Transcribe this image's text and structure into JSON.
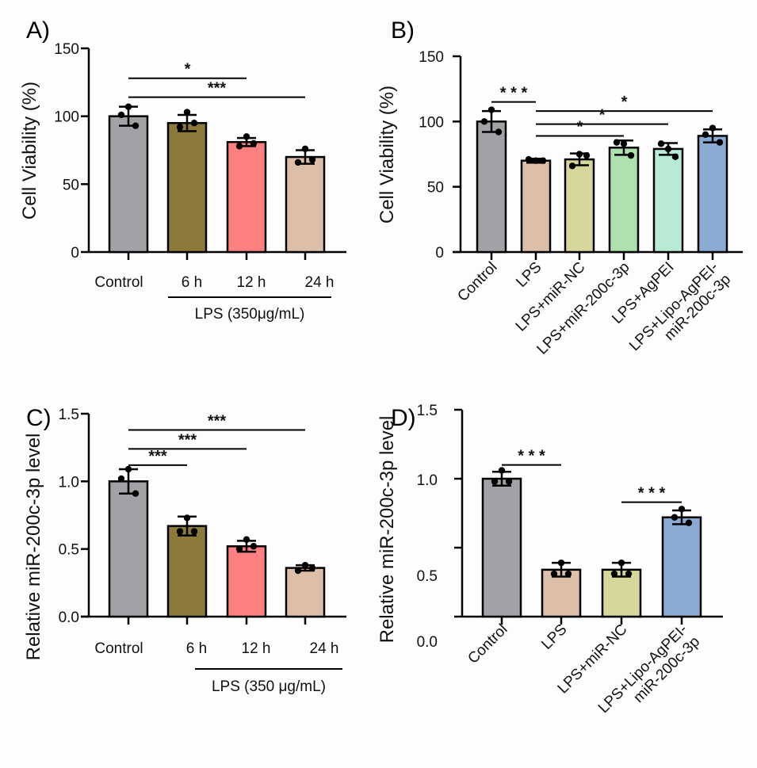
{
  "chart_data": [
    {
      "panel": "A)",
      "type": "bar",
      "ylabel": "Cell Viability (%)",
      "ylim": [
        0,
        150
      ],
      "yticks": [
        0,
        50,
        100,
        150
      ],
      "categories": [
        "Control",
        "6 h",
        "12 h",
        "24 h"
      ],
      "group_label": "LPS (350μg/mL)",
      "group_members": [
        "6 h",
        "12 h",
        "24 h"
      ],
      "values": [
        100,
        95,
        81,
        70
      ],
      "errors": [
        7,
        6,
        3,
        5
      ],
      "points": [
        [
          107,
          101,
          93
        ],
        [
          103,
          92,
          95
        ],
        [
          85,
          78,
          80
        ],
        [
          76,
          66,
          68
        ]
      ],
      "colors": [
        "#a2a2a6",
        "#8b7a3a",
        "#fe8080",
        "#dbbfa8"
      ],
      "significance": [
        {
          "from": 0,
          "to": 2,
          "label": "*",
          "level": 128
        },
        {
          "from": 0,
          "to": 3,
          "label": "***",
          "level": 114
        }
      ]
    },
    {
      "panel": "B)",
      "type": "bar",
      "ylabel": "Cell Viability (%)",
      "ylim": [
        0,
        150
      ],
      "yticks": [
        0,
        50,
        100,
        150
      ],
      "categories": [
        "Control",
        "LPS",
        "LPS+miR-NC",
        "LPS+miR-200c-3p",
        "LPS+AgPEI",
        "LPS+Lipo-AgPEI-miR-200c-3p"
      ],
      "category_lines": [
        [
          "Control"
        ],
        [
          "LPS"
        ],
        [
          "LPS+miR-NC"
        ],
        [
          "LPS+miR-200c-3p"
        ],
        [
          "LPS+AgPEI"
        ],
        [
          "LPS+Lipo-AgPEI-",
          "miR-200c-3p"
        ]
      ],
      "values": [
        100,
        70,
        71,
        80,
        79,
        89
      ],
      "errors": [
        8,
        1.5,
        4.5,
        5.5,
        4.5,
        5
      ],
      "points": [
        [
          109,
          100,
          92
        ],
        [
          70,
          71,
          70
        ],
        [
          75,
          66,
          74
        ],
        [
          83,
          84,
          74
        ],
        [
          79,
          83,
          73
        ],
        [
          95,
          90,
          84
        ]
      ],
      "colors": [
        "#a2a2a6",
        "#dbbfa8",
        "#d8d79b",
        "#aee0ad",
        "#b7ebd4",
        "#8cabd3"
      ],
      "significance": [
        {
          "from": 0,
          "to": 1,
          "label": "* * *",
          "level": 115
        },
        {
          "from": 1,
          "to": 5,
          "label": "*",
          "level": 108
        },
        {
          "from": 1,
          "to": 4,
          "label": "*",
          "level": 98
        },
        {
          "from": 1,
          "to": 3,
          "label": "*",
          "level": 89
        }
      ]
    },
    {
      "panel": "C)",
      "type": "bar",
      "ylabel": "Relative miR-200c-3p level",
      "ylim": [
        0,
        1.5
      ],
      "yticks": [
        0.0,
        0.5,
        1.0,
        1.5
      ],
      "ytick_labels": [
        "0.0",
        "0.5",
        "1.0",
        "1.5"
      ],
      "categories": [
        "Control",
        "6 h",
        "12 h",
        "24 h"
      ],
      "group_label": "LPS (350 μg/mL)",
      "group_members": [
        "6 h",
        "12 h",
        "24 h"
      ],
      "values": [
        1.0,
        0.67,
        0.52,
        0.36
      ],
      "errors": [
        0.09,
        0.07,
        0.04,
        0.02
      ],
      "points": [
        [
          1.09,
          1.02,
          0.91
        ],
        [
          0.73,
          0.63,
          0.63
        ],
        [
          0.57,
          0.5,
          0.52
        ],
        [
          0.38,
          0.34,
          0.36
        ]
      ],
      "colors": [
        "#a2a2a6",
        "#8b7a3a",
        "#fe8080",
        "#dbbfa8"
      ],
      "significance": [
        {
          "from": 0,
          "to": 1,
          "label": "***",
          "level": 1.12
        },
        {
          "from": 0,
          "to": 2,
          "label": "***",
          "level": 1.24
        },
        {
          "from": 0,
          "to": 3,
          "label": "***",
          "level": 1.38
        }
      ]
    },
    {
      "panel": "D)",
      "type": "bar",
      "ylabel": "Relative miR-200c-3p level",
      "ylim": [
        0,
        1.5
      ],
      "yticks": [
        1.5,
        1.0,
        0.5
      ],
      "ytick_labels_shown": [
        "1.5",
        "1.0",
        "0.5",
        "0.0"
      ],
      "categories": [
        "Control",
        "LPS",
        "LPS+miR-NC",
        "LPS+Lipo-AgPEI-miR-200c-3p"
      ],
      "category_lines": [
        [
          "Control"
        ],
        [
          "LPS"
        ],
        [
          "LPS+miR-NC"
        ],
        [
          "LPS+Lipo-AgPEI-",
          "miR-200c-3p"
        ]
      ],
      "values": [
        1.0,
        0.34,
        0.34,
        0.72
      ],
      "errors": [
        0.05,
        0.05,
        0.05,
        0.05
      ],
      "points": [
        [
          1.06,
          0.98,
          0.98
        ],
        [
          0.39,
          0.31,
          0.31
        ],
        [
          0.39,
          0.31,
          0.31
        ],
        [
          0.78,
          0.72,
          0.68
        ]
      ],
      "colors": [
        "#a2a2a6",
        "#dbbfa8",
        "#d8d79b",
        "#8cabd3"
      ],
      "significance": [
        {
          "from": 0,
          "to": 1,
          "label": "* * *",
          "level": 1.1
        },
        {
          "from": 2,
          "to": 3,
          "label": "* * *",
          "level": 0.83
        }
      ]
    }
  ]
}
